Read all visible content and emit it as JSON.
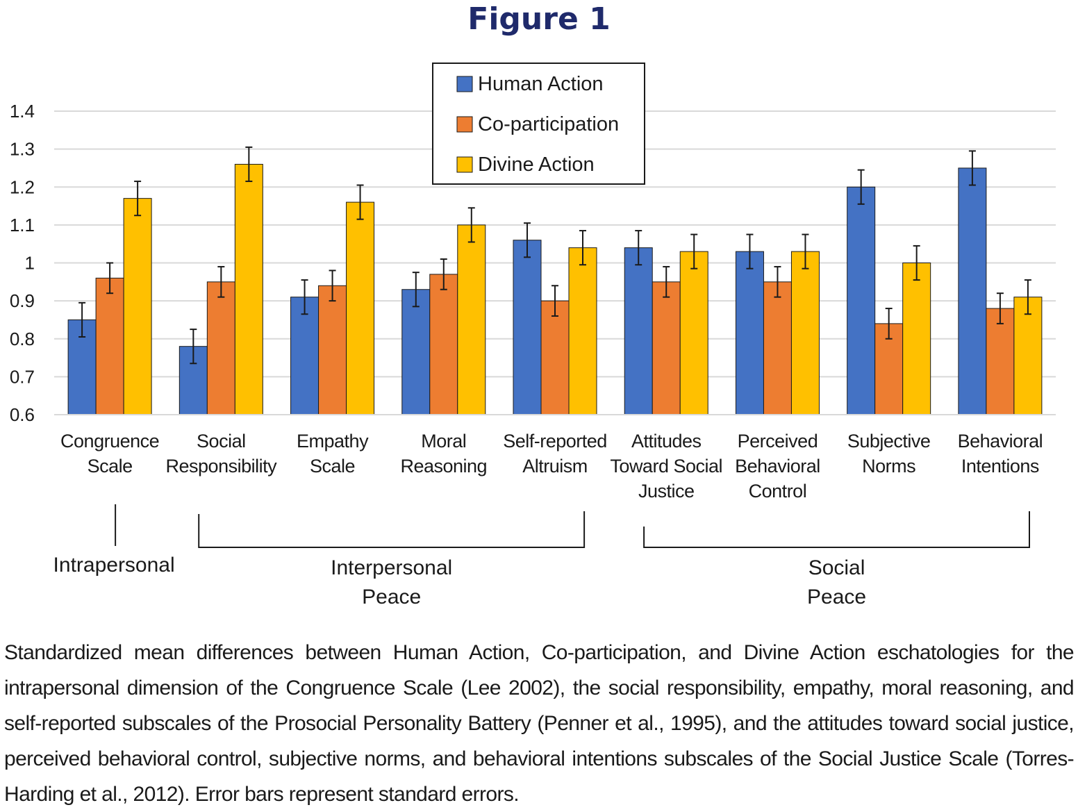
{
  "figure_title": "Figure 1",
  "chart_data": {
    "type": "bar",
    "title": "",
    "xlabel": "",
    "ylabel": "",
    "ylim": [
      0.6,
      1.4
    ],
    "yticks": [
      "0.6",
      "0.7",
      "0.8",
      "0.9",
      "1",
      "1.1",
      "1.2",
      "1.3",
      "1.4"
    ],
    "grid": true,
    "legend_position": "top-center",
    "categories": [
      [
        "Congruence",
        "Scale"
      ],
      [
        "Social",
        "Responsibility"
      ],
      [
        "Empathy",
        "Scale"
      ],
      [
        "Moral",
        "Reasoning"
      ],
      [
        "Self-reported",
        "Altruism"
      ],
      [
        "Attitudes",
        "Toward Social",
        "Justice"
      ],
      [
        "Perceived",
        "Behavioral",
        "Control"
      ],
      [
        "Subjective",
        "Norms"
      ],
      [
        "Behavioral",
        "Intentions"
      ]
    ],
    "series": [
      {
        "name": "Human Action",
        "color": "#4472c4",
        "values": [
          0.85,
          0.78,
          0.91,
          0.93,
          1.06,
          1.04,
          1.03,
          1.2,
          1.25
        ],
        "errors": [
          0.045,
          0.045,
          0.045,
          0.045,
          0.045,
          0.045,
          0.045,
          0.045,
          0.045
        ]
      },
      {
        "name": "Co-participation",
        "color": "#ed7d31",
        "values": [
          0.96,
          0.95,
          0.94,
          0.97,
          0.9,
          0.95,
          0.95,
          0.84,
          0.88
        ],
        "errors": [
          0.04,
          0.04,
          0.04,
          0.04,
          0.04,
          0.04,
          0.04,
          0.04,
          0.04
        ]
      },
      {
        "name": "Divine Action",
        "color": "#ffc000",
        "values": [
          1.17,
          1.26,
          1.16,
          1.1,
          1.04,
          1.03,
          1.03,
          1.0,
          0.91
        ],
        "errors": [
          0.045,
          0.045,
          0.045,
          0.045,
          0.045,
          0.045,
          0.045,
          0.045,
          0.045
        ]
      }
    ],
    "groups": [
      {
        "label": [
          "Intrapersonal"
        ],
        "from": 0,
        "to": 0
      },
      {
        "label": [
          "Interpersonal",
          "Peace"
        ],
        "from": 1,
        "to": 4
      },
      {
        "label": [
          "Social",
          "Peace"
        ],
        "from": 5,
        "to": 8
      }
    ]
  },
  "caption": "Standardized mean differences between Human Action, Co-participation, and Divine Action eschatologies for the intrapersonal dimension of the Congruence Scale (Lee 2002), the social responsibility, empathy, moral reasoning, and self-reported subscales of the Prosocial Personality Battery (Penner et al., 1995), and the attitudes toward social justice, perceived behavioral control, subjective norms, and behavioral intentions subscales of the Social Justice Scale (Torres-Harding et al., 2012). Error bars represent standard errors."
}
